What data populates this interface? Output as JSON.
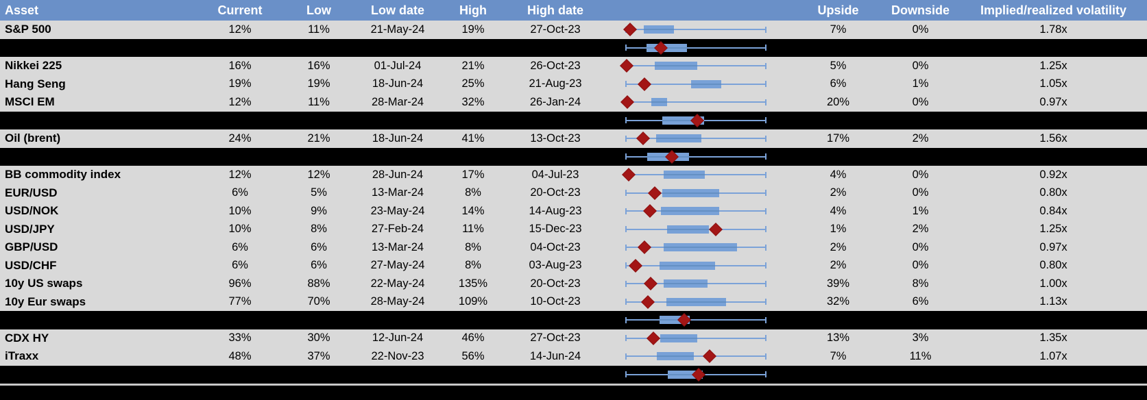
{
  "colors": {
    "header_blue": "#6A90C8",
    "row_gray": "#D9D9D9",
    "separator_black": "#000000",
    "box_blue": "#78A1D7",
    "box_median_blue": "#6490C4",
    "whisker_blue": "#7BA2D8",
    "diamond_dark_red": "#A31616",
    "header_text": "#FFFFFF",
    "body_text": "#000000"
  },
  "chart_data": {
    "type": "table",
    "title": "Implied volatility overview with 1y range box-whisker plots",
    "columns": [
      "Asset",
      "Current",
      "Low",
      "Low date",
      "High",
      "High date",
      "",
      "Upside",
      "Downside",
      "Implied/realized volatility"
    ],
    "boxplot_note": "Per-row box-whisker: whisker spans full normalized range [0,1]; box and diamond (current level marker) positions are fractions of the whisker span.",
    "rows": [
      {
        "kind": "data",
        "asset": "S&P 500",
        "current": "12%",
        "low": "11%",
        "low_date": "21-May-24",
        "high": "19%",
        "high_date": "27-Oct-23",
        "upside": "7%",
        "downside": "0%",
        "implied_realized_vol": "1.78x",
        "plot": {
          "box": [
            0.127,
            0.343
          ],
          "diamond": 0.03
        }
      },
      {
        "kind": "separator",
        "plot": {
          "box": [
            0.147,
            0.436
          ],
          "diamond": 0.25
        }
      },
      {
        "kind": "data",
        "asset": "Nikkei 225",
        "current": "16%",
        "low": "16%",
        "low_date": "01-Jul-24",
        "high": "21%",
        "high_date": "26-Oct-23",
        "upside": "5%",
        "downside": "0%",
        "implied_realized_vol": "1.25x",
        "plot": {
          "box": [
            0.206,
            0.51
          ],
          "diamond": 0.005
        }
      },
      {
        "kind": "data",
        "asset": "Hang Seng",
        "current": "19%",
        "low": "19%",
        "low_date": "18-Jun-24",
        "high": "25%",
        "high_date": "21-Aug-23",
        "upside": "6%",
        "downside": "1%",
        "implied_realized_vol": "1.05x",
        "plot": {
          "box": [
            0.466,
            0.68
          ],
          "diamond": 0.132
        }
      },
      {
        "kind": "data",
        "asset": "MSCI EM",
        "current": "12%",
        "low": "11%",
        "low_date": "28-Mar-24",
        "high": "32%",
        "high_date": "26-Jan-24",
        "upside": "20%",
        "downside": "0%",
        "implied_realized_vol": "0.97x",
        "plot": {
          "box": [
            0.18,
            0.294
          ],
          "diamond": 0.01
        }
      },
      {
        "kind": "separator",
        "plot": {
          "box": [
            0.26,
            0.56
          ],
          "diamond": 0.51
        }
      },
      {
        "kind": "data",
        "asset": "Oil (brent)",
        "current": "24%",
        "low": "21%",
        "low_date": "18-Jun-24",
        "high": "41%",
        "high_date": "13-Oct-23",
        "upside": "17%",
        "downside": "2%",
        "implied_realized_vol": "1.56x",
        "plot": {
          "box": [
            0.216,
            0.539
          ],
          "diamond": 0.123
        }
      },
      {
        "kind": "separator",
        "plot": {
          "box": [
            0.15,
            0.45
          ],
          "diamond": 0.33
        }
      },
      {
        "kind": "data",
        "asset": "BB commodity index",
        "current": "12%",
        "low": "12%",
        "low_date": "28-Jun-24",
        "high": "17%",
        "high_date": "04-Jul-23",
        "upside": "4%",
        "downside": "0%",
        "implied_realized_vol": "0.92x",
        "plot": {
          "box": [
            0.27,
            0.564
          ],
          "diamond": 0.02
        }
      },
      {
        "kind": "data",
        "asset": "EUR/USD",
        "current": "6%",
        "low": "5%",
        "low_date": "13-Mar-24",
        "high": "8%",
        "high_date": "20-Oct-23",
        "upside": "2%",
        "downside": "0%",
        "implied_realized_vol": "0.80x",
        "plot": {
          "box": [
            0.26,
            0.667
          ],
          "diamond": 0.205
        }
      },
      {
        "kind": "data",
        "asset": "USD/NOK",
        "current": "10%",
        "low": "9%",
        "low_date": "23-May-24",
        "high": "14%",
        "high_date": "14-Aug-23",
        "upside": "4%",
        "downside": "1%",
        "implied_realized_vol": "0.84x",
        "plot": {
          "box": [
            0.25,
            0.667
          ],
          "diamond": 0.172
        }
      },
      {
        "kind": "data",
        "asset": "USD/JPY",
        "current": "10%",
        "low": "8%",
        "low_date": "27-Feb-24",
        "high": "11%",
        "high_date": "15-Dec-23",
        "upside": "1%",
        "downside": "2%",
        "implied_realized_vol": "1.25x",
        "plot": {
          "box": [
            0.295,
            0.595
          ],
          "diamond": 0.64
        }
      },
      {
        "kind": "data",
        "asset": "GBP/USD",
        "current": "6%",
        "low": "6%",
        "low_date": "13-Mar-24",
        "high": "8%",
        "high_date": "04-Oct-23",
        "upside": "2%",
        "downside": "0%",
        "implied_realized_vol": "0.97x",
        "plot": {
          "box": [
            0.27,
            0.794
          ],
          "diamond": 0.13
        }
      },
      {
        "kind": "data",
        "asset": "USD/CHF",
        "current": "6%",
        "low": "6%",
        "low_date": "27-May-24",
        "high": "8%",
        "high_date": "03-Aug-23",
        "upside": "2%",
        "downside": "0%",
        "implied_realized_vol": "0.80x",
        "plot": {
          "box": [
            0.24,
            0.637
          ],
          "diamond": 0.069
        }
      },
      {
        "kind": "data",
        "asset": "10y US swaps",
        "current": "96%",
        "low": "88%",
        "low_date": "22-May-24",
        "high": "135%",
        "high_date": "20-Oct-23",
        "upside": "39%",
        "downside": "8%",
        "implied_realized_vol": "1.00x",
        "plot": {
          "box": [
            0.27,
            0.583
          ],
          "diamond": 0.176
        }
      },
      {
        "kind": "data",
        "asset": "10y Eur swaps",
        "current": "77%",
        "low": "70%",
        "low_date": "28-May-24",
        "high": "109%",
        "high_date": "10-Oct-23",
        "upside": "32%",
        "downside": "6%",
        "implied_realized_vol": "1.13x",
        "plot": {
          "box": [
            0.289,
            0.716
          ],
          "diamond": 0.157
        }
      },
      {
        "kind": "separator",
        "plot": {
          "box": [
            0.24,
            0.455
          ],
          "diamond": 0.417
        }
      },
      {
        "kind": "data",
        "asset": "CDX HY",
        "current": "33%",
        "low": "30%",
        "low_date": "12-Jun-24",
        "high": "46%",
        "high_date": "27-Oct-23",
        "upside": "13%",
        "downside": "3%",
        "implied_realized_vol": "1.35x",
        "plot": {
          "box": [
            0.245,
            0.51
          ],
          "diamond": 0.196
        }
      },
      {
        "kind": "data",
        "asset": "iTraxx",
        "current": "48%",
        "low": "37%",
        "low_date": "22-Nov-23",
        "high": "56%",
        "high_date": "14-Jun-24",
        "upside": "7%",
        "downside": "11%",
        "implied_realized_vol": "1.07x",
        "plot": {
          "box": [
            0.22,
            0.485
          ],
          "diamond": 0.6
        }
      },
      {
        "kind": "separator",
        "plot": {
          "box": [
            0.3,
            0.55
          ],
          "diamond": 0.52
        }
      }
    ]
  }
}
